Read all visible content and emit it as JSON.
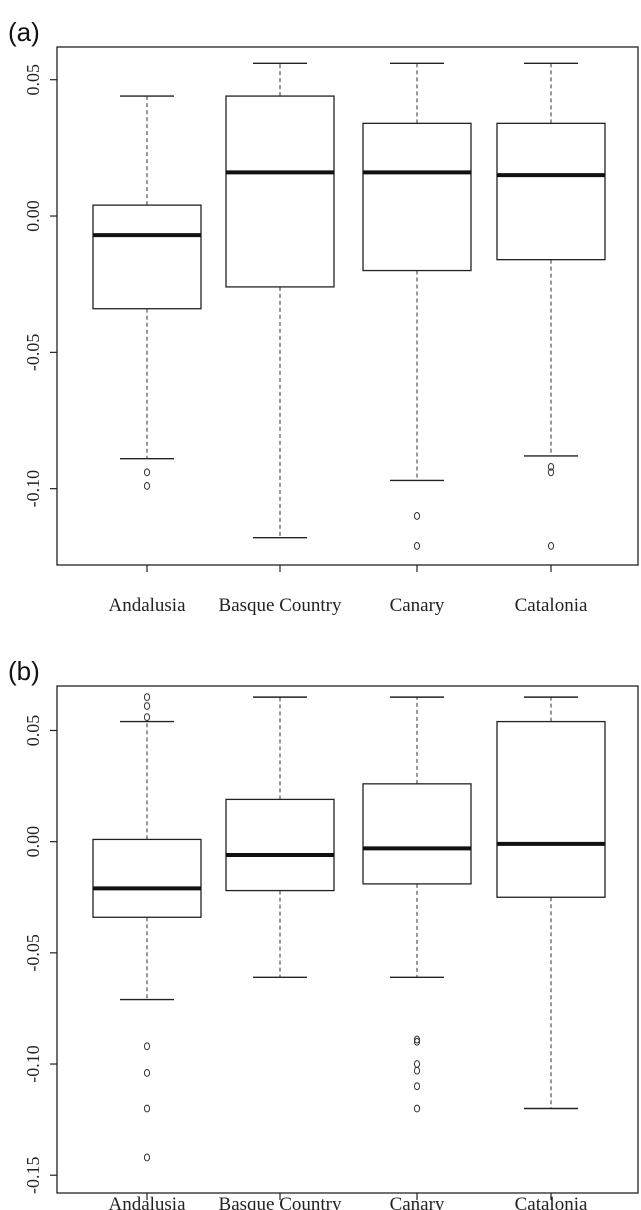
{
  "chart_data": [
    {
      "type": "boxplot",
      "panel_label": "(a)",
      "categories": [
        "Andalusia",
        "Basque Country",
        "Canary",
        "Catalonia"
      ],
      "ylim": [
        -0.128,
        0.062
      ],
      "yticks": [
        0.05,
        0.0,
        -0.05,
        -0.1
      ],
      "ytick_labels": [
        "0.05",
        "0.00",
        "-0.05",
        "-0.10"
      ],
      "boxes": [
        {
          "whisker_low": -0.089,
          "q1": -0.034,
          "median": -0.007,
          "q3": 0.004,
          "whisker_high": 0.044,
          "outliers": [
            -0.094,
            -0.099
          ]
        },
        {
          "whisker_low": -0.118,
          "q1": -0.026,
          "median": 0.016,
          "q3": 0.044,
          "whisker_high": 0.056,
          "outliers": []
        },
        {
          "whisker_low": -0.097,
          "q1": -0.02,
          "median": 0.016,
          "q3": 0.034,
          "whisker_high": 0.056,
          "outliers": [
            -0.11,
            -0.121
          ]
        },
        {
          "whisker_low": -0.088,
          "q1": -0.016,
          "median": 0.015,
          "q3": 0.034,
          "whisker_high": 0.056,
          "outliers": [
            -0.092,
            -0.094,
            -0.121
          ]
        }
      ]
    },
    {
      "type": "boxplot",
      "panel_label": "(b)",
      "categories": [
        "Andalusia",
        "Basque Country",
        "Canary",
        "Catalonia"
      ],
      "ylim": [
        -0.158,
        0.07
      ],
      "yticks": [
        0.05,
        0.0,
        -0.05,
        -0.1,
        -0.15
      ],
      "ytick_labels": [
        "0.05",
        "0.00",
        "-0.05",
        "-0.10",
        "-0.15"
      ],
      "boxes": [
        {
          "whisker_low": -0.071,
          "q1": -0.034,
          "median": -0.021,
          "q3": 0.001,
          "whisker_high": 0.054,
          "outliers": [
            0.056,
            0.061,
            0.065,
            -0.092,
            -0.104,
            -0.12,
            -0.142
          ]
        },
        {
          "whisker_low": -0.061,
          "q1": -0.022,
          "median": -0.006,
          "q3": 0.019,
          "whisker_high": 0.065,
          "outliers": []
        },
        {
          "whisker_low": -0.061,
          "q1": -0.019,
          "median": -0.003,
          "q3": 0.026,
          "whisker_high": 0.065,
          "outliers": [
            -0.089,
            -0.09,
            -0.1,
            -0.103,
            -0.11,
            -0.12
          ]
        },
        {
          "whisker_low": -0.12,
          "q1": -0.025,
          "median": -0.001,
          "q3": 0.054,
          "whisker_high": 0.065,
          "outliers": []
        }
      ]
    }
  ]
}
